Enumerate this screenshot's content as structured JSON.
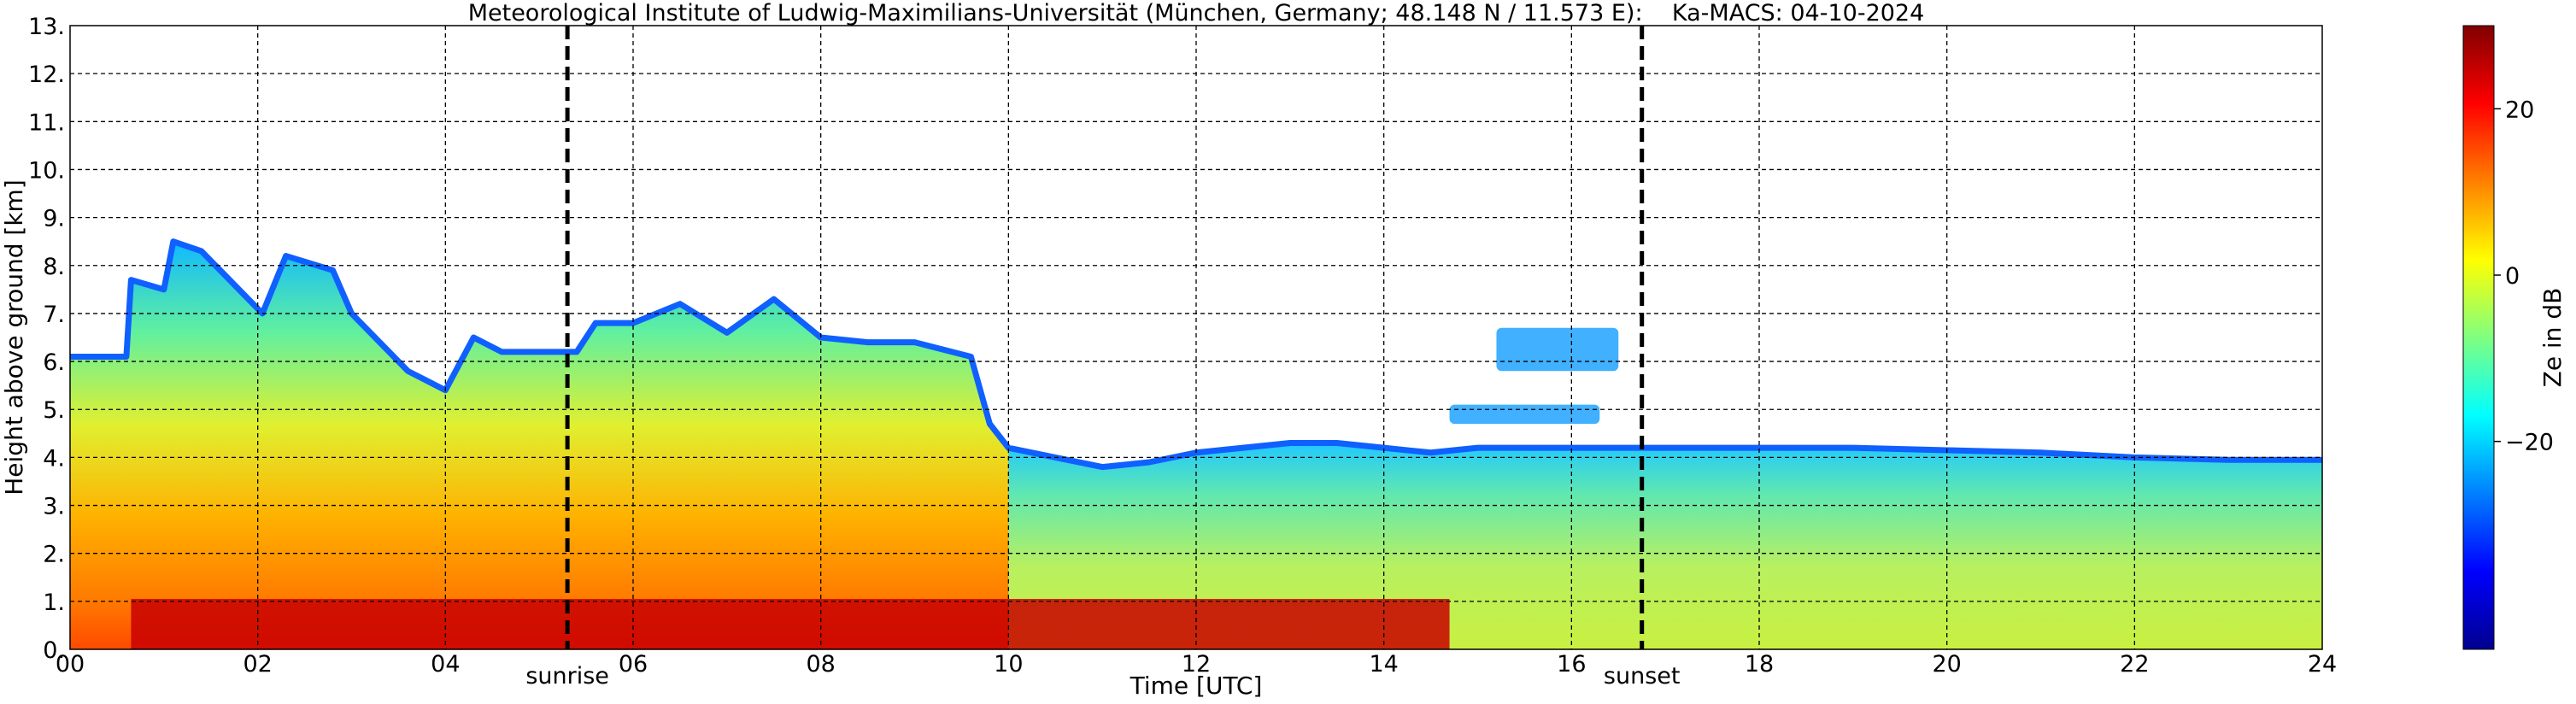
{
  "chart_data": {
    "type": "heatmap",
    "title": "Meteorological Institute of Ludwig-Maximilians-Universität (München, Germany; 48.148 N / 11.573 E):    Ka-MACS: 04-10-2024",
    "xlabel": "Time [UTC]",
    "ylabel": "Height above ground [km]",
    "xlim": [
      0,
      24
    ],
    "ylim": [
      0,
      13
    ],
    "x_ticks": [
      "00",
      "02",
      "04",
      "06",
      "08",
      "10",
      "12",
      "14",
      "16",
      "18",
      "20",
      "22",
      "24"
    ],
    "y_ticks": [
      "0.",
      "1.",
      "2.",
      "3.",
      "4.",
      "5.",
      "6.",
      "7.",
      "8.",
      "9.",
      "10.",
      "11.",
      "12.",
      "13."
    ],
    "grid": true,
    "colorbar": {
      "label": "Ze in dB",
      "range": [
        -45,
        30
      ],
      "ticks": [
        "20",
        "0",
        "−20"
      ],
      "tick_values": [
        20,
        0,
        -20
      ],
      "colors": [
        "#00008f",
        "#0000ff",
        "#0080ff",
        "#00ffff",
        "#80ff80",
        "#ffff00",
        "#ff8000",
        "#ff0000",
        "#800000"
      ]
    },
    "vlines": [
      {
        "label": "sunrise",
        "x": 5.3
      },
      {
        "label": "sunset",
        "x": 16.75
      }
    ],
    "echo_top_km": {
      "x": [
        0,
        0.6,
        0.65,
        1.0,
        1.1,
        1.4,
        2.05,
        2.3,
        2.8,
        3.0,
        3.6,
        4.0,
        4.3,
        4.6,
        5.0,
        5.4,
        5.6,
        6.0,
        6.5,
        7.0,
        7.5,
        8.0,
        8.5,
        9.0,
        9.6,
        9.8,
        10.0,
        10.5,
        11.0,
        11.5,
        12.0,
        12.5,
        13.0,
        13.5,
        14.0,
        14.5,
        15.0,
        16.0,
        17.0,
        18.0,
        19.0,
        20.0,
        21.0,
        22.0,
        23.0,
        24.0
      ],
      "y": [
        6.1,
        6.1,
        7.7,
        7.5,
        8.5,
        8.3,
        7.0,
        8.2,
        7.9,
        7.0,
        5.8,
        5.4,
        6.5,
        6.2,
        6.2,
        6.2,
        6.8,
        6.8,
        7.2,
        6.6,
        7.3,
        6.5,
        6.4,
        6.4,
        6.1,
        4.7,
        4.2,
        4.0,
        3.8,
        3.9,
        4.1,
        4.2,
        4.3,
        4.3,
        4.2,
        4.1,
        4.2,
        4.2,
        4.2,
        4.2,
        4.2,
        4.15,
        4.1,
        4.0,
        3.95,
        3.95
      ]
    },
    "isolated_clouds": [
      {
        "x": [
          15.2,
          16.5
        ],
        "y": [
          5.8,
          6.7
        ]
      },
      {
        "x": [
          14.7,
          16.3
        ],
        "y": [
          4.7,
          5.1
        ]
      }
    ],
    "bright_band_km": 1.0
  }
}
